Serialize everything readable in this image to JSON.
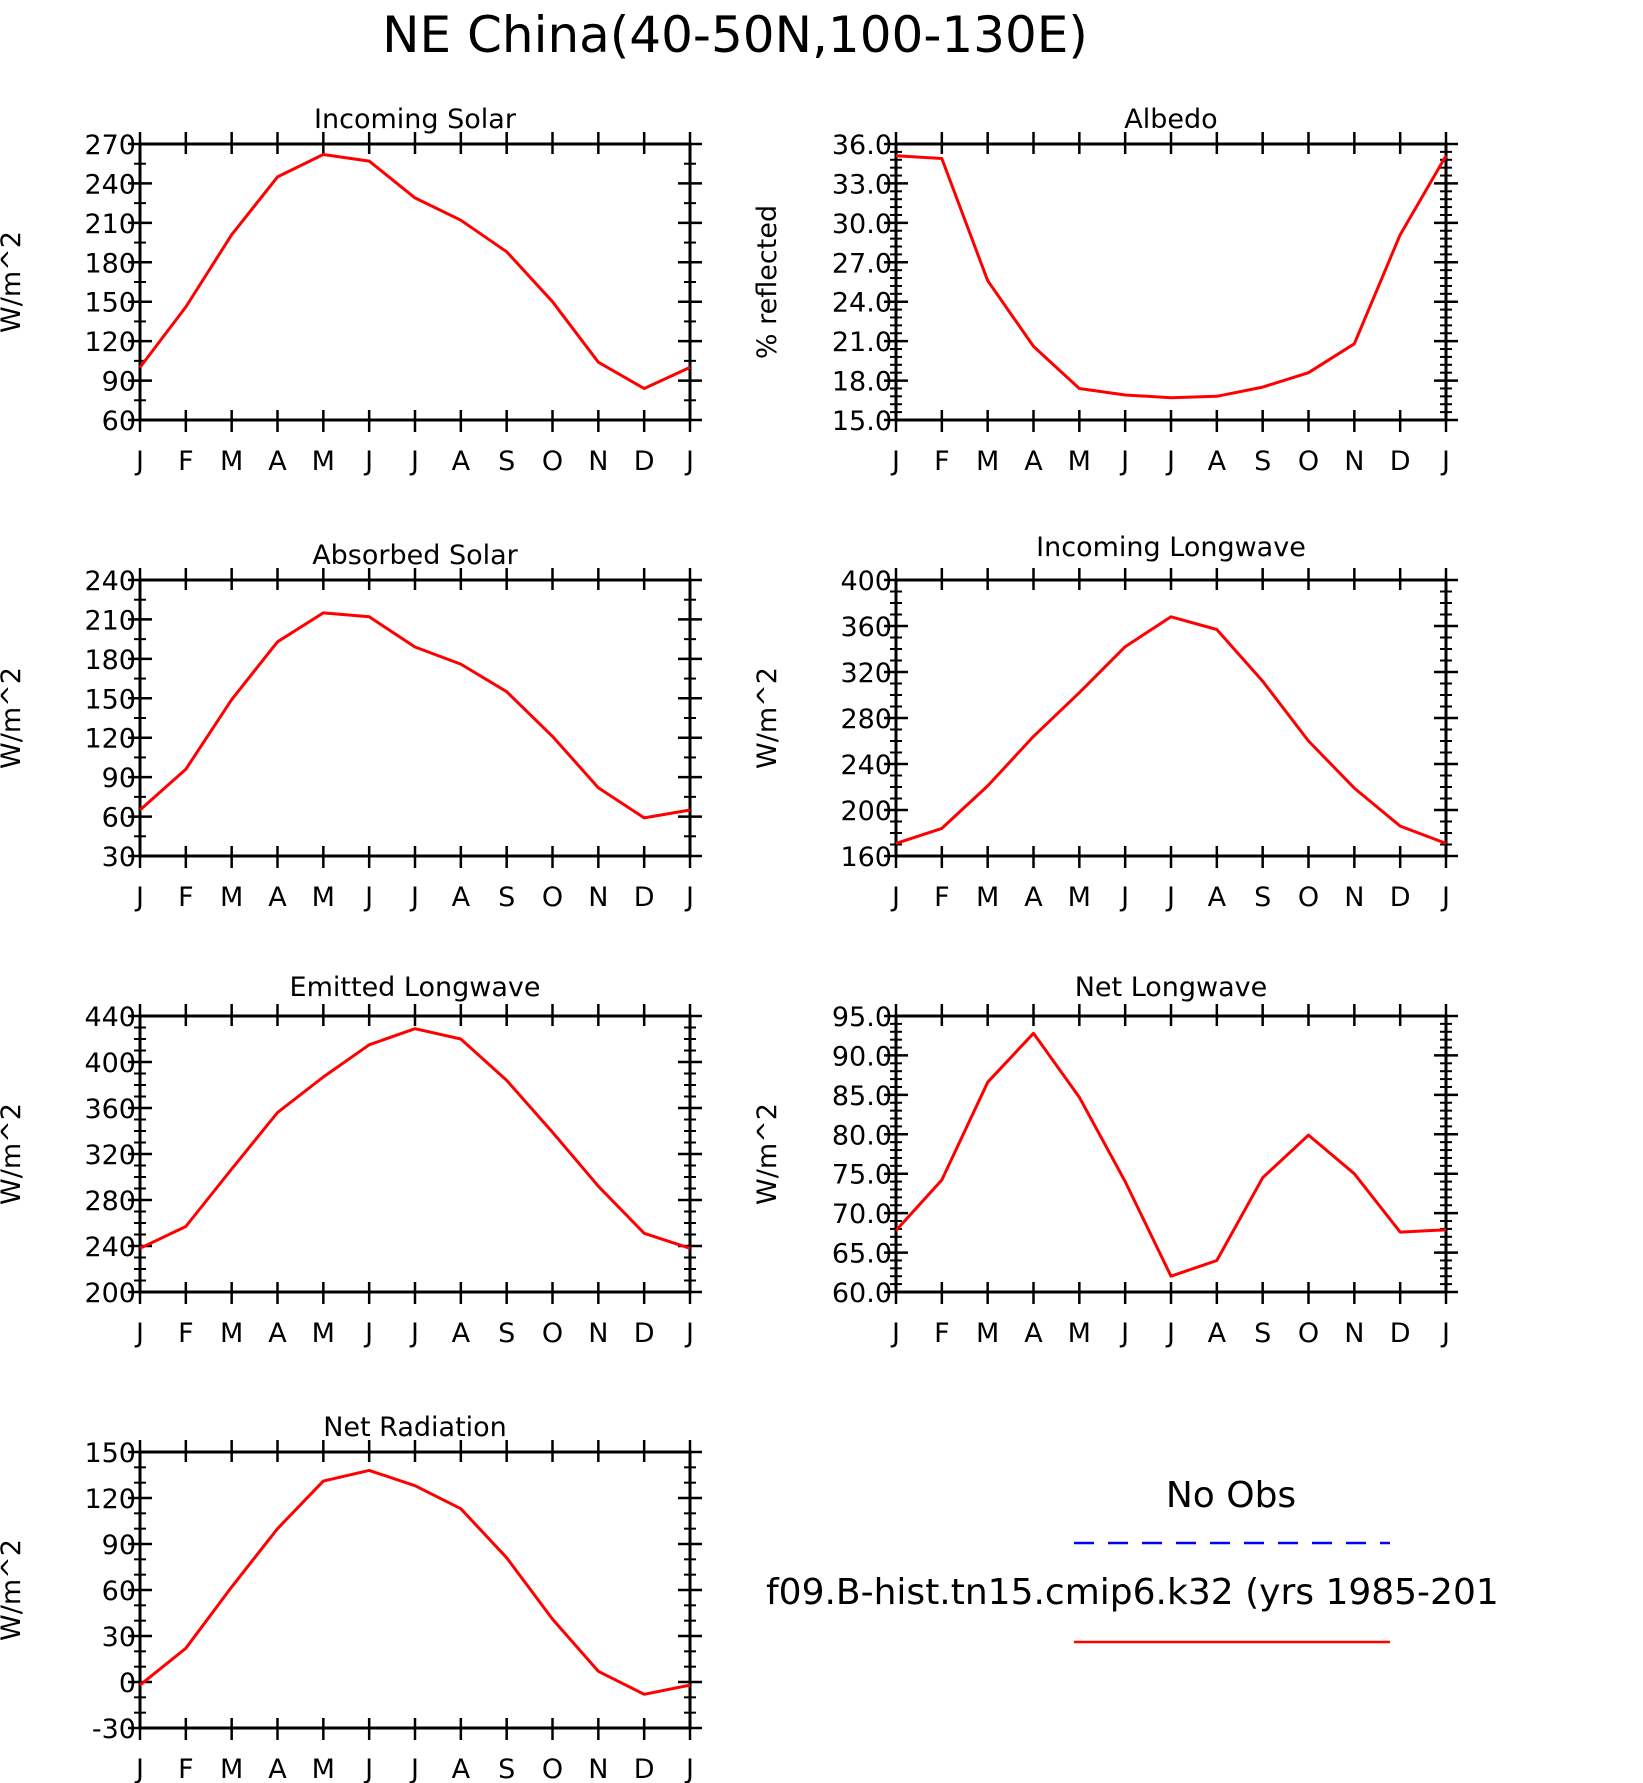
{
  "figure": {
    "title": "NE China(40-50N,100-130E)"
  },
  "chart_data": [
    {
      "type": "line",
      "title": "Incoming Solar",
      "ylabel": "W/m^2",
      "xlabel": "",
      "x": [
        "J",
        "F",
        "M",
        "A",
        "M",
        "J",
        "J",
        "A",
        "S",
        "O",
        "N",
        "D",
        "J"
      ],
      "yticks": [
        "60",
        "90",
        "120",
        "150",
        "180",
        "210",
        "240",
        "270"
      ],
      "ylim": [
        60,
        270
      ],
      "yminor": 15,
      "series": [
        {
          "color": "#ff0000",
          "values": [
            100,
            146,
            201,
            245,
            262,
            257,
            229,
            212,
            188,
            150,
            104,
            84,
            100
          ]
        }
      ]
    },
    {
      "type": "line",
      "title": "Albedo",
      "ylabel": "% reflected",
      "xlabel": "",
      "x": [
        "J",
        "F",
        "M",
        "A",
        "M",
        "J",
        "J",
        "A",
        "S",
        "O",
        "N",
        "D",
        "J"
      ],
      "yticks": [
        "15.0",
        "18.0",
        "21.0",
        "24.0",
        "27.0",
        "30.0",
        "33.0",
        "36.0"
      ],
      "ylim": [
        15,
        36
      ],
      "yminor": 0.6,
      "series": [
        {
          "color": "#ff0000",
          "values": [
            35.1,
            34.9,
            25.6,
            20.6,
            17.4,
            16.9,
            16.7,
            16.8,
            17.5,
            18.6,
            20.8,
            29.1,
            35.1
          ]
        }
      ]
    },
    {
      "type": "line",
      "title": "Absorbed Solar",
      "ylabel": "W/m^2",
      "xlabel": "",
      "x": [
        "J",
        "F",
        "M",
        "A",
        "M",
        "J",
        "J",
        "A",
        "S",
        "O",
        "N",
        "D",
        "J"
      ],
      "yticks": [
        "30",
        "60",
        "90",
        "120",
        "150",
        "180",
        "210",
        "240"
      ],
      "ylim": [
        30,
        240
      ],
      "yminor": 15,
      "series": [
        {
          "color": "#ff0000",
          "values": [
            65,
            96,
            149,
            193,
            215,
            212,
            189,
            176,
            155,
            121,
            82,
            59,
            65
          ]
        }
      ]
    },
    {
      "type": "line",
      "title": "Incoming Longwave",
      "ylabel": "W/m^2",
      "xlabel": "",
      "x": [
        "J",
        "F",
        "M",
        "A",
        "M",
        "J",
        "J",
        "A",
        "S",
        "O",
        "N",
        "D",
        "J"
      ],
      "yticks": [
        "160",
        "200",
        "240",
        "280",
        "320",
        "360",
        "400"
      ],
      "ylim": [
        160,
        400
      ],
      "yminor": 10,
      "series": [
        {
          "color": "#ff0000",
          "values": [
            171,
            184,
            221,
            264,
            302,
            342,
            368,
            357,
            312,
            260,
            219,
            186,
            171
          ]
        }
      ]
    },
    {
      "type": "line",
      "title": "Emitted Longwave",
      "ylabel": "W/m^2",
      "xlabel": "",
      "x": [
        "J",
        "F",
        "M",
        "A",
        "M",
        "J",
        "J",
        "A",
        "S",
        "O",
        "N",
        "D",
        "J"
      ],
      "yticks": [
        "200",
        "240",
        "280",
        "320",
        "360",
        "400",
        "440"
      ],
      "ylim": [
        200,
        440
      ],
      "yminor": 10,
      "series": [
        {
          "color": "#ff0000",
          "values": [
            238,
            257,
            307,
            356,
            387,
            415,
            429,
            420,
            384,
            339,
            292,
            251,
            238
          ]
        }
      ]
    },
    {
      "type": "line",
      "title": "Net Longwave",
      "ylabel": "W/m^2",
      "xlabel": "",
      "x": [
        "J",
        "F",
        "M",
        "A",
        "M",
        "J",
        "J",
        "A",
        "S",
        "O",
        "N",
        "D",
        "J"
      ],
      "yticks": [
        "60.0",
        "65.0",
        "70.0",
        "75.0",
        "80.0",
        "85.0",
        "90.0",
        "95.0"
      ],
      "ylim": [
        60,
        95
      ],
      "yminor": 1,
      "series": [
        {
          "color": "#ff0000",
          "values": [
            67.8,
            74.2,
            86.6,
            92.8,
            84.7,
            74.0,
            62.0,
            64.0,
            74.5,
            79.9,
            75.0,
            67.6,
            67.9
          ]
        }
      ]
    },
    {
      "type": "line",
      "title": "Net Radiation",
      "ylabel": "W/m^2",
      "xlabel": "",
      "x": [
        "J",
        "F",
        "M",
        "A",
        "M",
        "J",
        "J",
        "A",
        "S",
        "O",
        "N",
        "D",
        "J"
      ],
      "yticks": [
        "-30",
        "0",
        "30",
        "60",
        "90",
        "120",
        "150"
      ],
      "ylim": [
        -30,
        150
      ],
      "yminor": 10,
      "series": [
        {
          "color": "#ff0000",
          "values": [
            -2,
            22,
            62,
            100,
            131,
            138,
            128,
            113,
            81,
            41,
            7,
            -8,
            -2
          ]
        }
      ]
    }
  ],
  "legend": {
    "entries": [
      {
        "label": "No Obs",
        "color": "#0000ff",
        "dash": "dashed"
      },
      {
        "label": "f09.B-hist.tn15.cmip6.k32 (yrs 1985-201",
        "color": "#ff0000",
        "dash": "solid"
      }
    ]
  }
}
